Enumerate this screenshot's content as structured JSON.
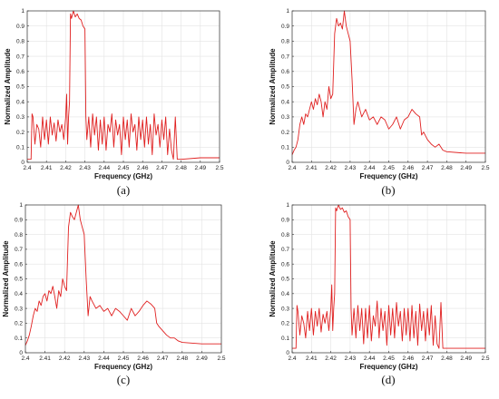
{
  "chart_data": [
    {
      "type": "line",
      "caption": "(a)",
      "xlabel": "Frequency (GHz)",
      "ylabel": "Normalized Amplitude",
      "xlim": [
        2.4,
        2.5
      ],
      "ylim": [
        0,
        1
      ],
      "xticks": [
        2.4,
        2.41,
        2.42,
        2.43,
        2.44,
        2.45,
        2.46,
        2.47,
        2.48,
        2.49,
        2.5
      ],
      "yticks": [
        0,
        0.1,
        0.2,
        0.3,
        0.4,
        0.5,
        0.6,
        0.7,
        0.8,
        0.9,
        1
      ],
      "grid": true,
      "color": "#e02020",
      "series": [
        {
          "x": [
            2.4,
            2.402,
            2.4025,
            2.403,
            2.404,
            2.405,
            2.406,
            2.407,
            2.408,
            2.409,
            2.41,
            2.411,
            2.412,
            2.413,
            2.414,
            2.415,
            2.416,
            2.417,
            2.418,
            2.419,
            2.42,
            2.4205,
            2.421,
            2.4215,
            2.422,
            2.4225,
            2.423,
            2.424,
            2.425,
            2.426,
            2.427,
            2.428,
            2.429,
            2.43,
            2.4305,
            2.431,
            2.432,
            2.433,
            2.434,
            2.435,
            2.436,
            2.437,
            2.438,
            2.439,
            2.44,
            2.441,
            2.442,
            2.443,
            2.444,
            2.445,
            2.446,
            2.447,
            2.448,
            2.449,
            2.45,
            2.451,
            2.452,
            2.453,
            2.454,
            2.455,
            2.456,
            2.457,
            2.458,
            2.459,
            2.46,
            2.461,
            2.462,
            2.463,
            2.464,
            2.465,
            2.466,
            2.467,
            2.468,
            2.469,
            2.47,
            2.471,
            2.472,
            2.473,
            2.474,
            2.475,
            2.476,
            2.477,
            2.478,
            2.479,
            2.48,
            2.49,
            2.5
          ],
          "y": [
            0.02,
            0.02,
            0.32,
            0.3,
            0.12,
            0.25,
            0.22,
            0.1,
            0.3,
            0.15,
            0.28,
            0.12,
            0.3,
            0.18,
            0.26,
            0.14,
            0.28,
            0.2,
            0.25,
            0.15,
            0.3,
            0.45,
            0.12,
            0.3,
            0.4,
            0.98,
            0.95,
            1.0,
            0.96,
            0.98,
            0.95,
            0.94,
            0.9,
            0.88,
            0.3,
            0.15,
            0.3,
            0.1,
            0.32,
            0.18,
            0.3,
            0.08,
            0.28,
            0.12,
            0.3,
            0.08,
            0.25,
            0.2,
            0.32,
            0.1,
            0.28,
            0.18,
            0.25,
            0.05,
            0.3,
            0.15,
            0.28,
            0.1,
            0.32,
            0.2,
            0.25,
            0.08,
            0.3,
            0.15,
            0.28,
            0.1,
            0.3,
            0.12,
            0.25,
            0.05,
            0.32,
            0.18,
            0.25,
            0.1,
            0.28,
            0.15,
            0.3,
            0.05,
            0.22,
            0.08,
            0.02,
            0.3,
            0.02,
            0.02,
            0.02,
            0.03,
            0.03
          ]
        }
      ]
    },
    {
      "type": "line",
      "caption": "(b)",
      "xlabel": "Frequency (GHz)",
      "ylabel": "Normalized Amplitude",
      "xlim": [
        2.4,
        2.5
      ],
      "ylim": [
        0,
        1
      ],
      "xticks": [
        2.4,
        2.41,
        2.42,
        2.43,
        2.44,
        2.45,
        2.46,
        2.47,
        2.48,
        2.49,
        2.5
      ],
      "yticks": [
        0,
        0.1,
        0.2,
        0.3,
        0.4,
        0.5,
        0.6,
        0.7,
        0.8,
        0.9,
        1
      ],
      "grid": true,
      "color": "#e02020",
      "series": [
        {
          "x": [
            2.4,
            2.401,
            2.402,
            2.403,
            2.404,
            2.405,
            2.406,
            2.407,
            2.408,
            2.409,
            2.41,
            2.411,
            2.412,
            2.413,
            2.414,
            2.415,
            2.416,
            2.417,
            2.418,
            2.419,
            2.42,
            2.421,
            2.422,
            2.423,
            2.424,
            2.425,
            2.426,
            2.427,
            2.428,
            2.429,
            2.43,
            2.431,
            2.432,
            2.433,
            2.434,
            2.436,
            2.438,
            2.44,
            2.442,
            2.444,
            2.446,
            2.448,
            2.45,
            2.452,
            2.454,
            2.456,
            2.458,
            2.46,
            2.462,
            2.464,
            2.466,
            2.467,
            2.468,
            2.47,
            2.472,
            2.474,
            2.476,
            2.478,
            2.48,
            2.49,
            2.5
          ],
          "y": [
            0.05,
            0.08,
            0.1,
            0.15,
            0.25,
            0.3,
            0.25,
            0.32,
            0.3,
            0.35,
            0.4,
            0.35,
            0.42,
            0.38,
            0.45,
            0.4,
            0.3,
            0.4,
            0.35,
            0.5,
            0.42,
            0.45,
            0.85,
            0.95,
            0.9,
            0.92,
            0.88,
            1.0,
            0.9,
            0.85,
            0.8,
            0.55,
            0.25,
            0.35,
            0.4,
            0.3,
            0.35,
            0.28,
            0.3,
            0.25,
            0.3,
            0.28,
            0.22,
            0.25,
            0.3,
            0.22,
            0.28,
            0.3,
            0.35,
            0.32,
            0.3,
            0.18,
            0.2,
            0.15,
            0.12,
            0.1,
            0.12,
            0.08,
            0.07,
            0.06,
            0.06
          ]
        }
      ]
    },
    {
      "type": "line",
      "caption": "(c)",
      "xlabel": "Frequency (GHz)",
      "ylabel": "Normalized Amplitude",
      "xlim": [
        2.4,
        2.5
      ],
      "ylim": [
        0,
        1
      ],
      "xticks": [
        2.4,
        2.41,
        2.42,
        2.43,
        2.44,
        2.45,
        2.46,
        2.47,
        2.48,
        2.49,
        2.5
      ],
      "yticks": [
        0,
        0.1,
        0.2,
        0.3,
        0.4,
        0.5,
        0.6,
        0.7,
        0.8,
        0.9,
        1
      ],
      "grid": true,
      "color": "#e02020",
      "series": [
        {
          "x": [
            2.4,
            2.401,
            2.402,
            2.403,
            2.404,
            2.405,
            2.406,
            2.407,
            2.408,
            2.409,
            2.41,
            2.411,
            2.412,
            2.413,
            2.414,
            2.415,
            2.416,
            2.417,
            2.418,
            2.419,
            2.42,
            2.421,
            2.422,
            2.423,
            2.424,
            2.425,
            2.426,
            2.427,
            2.428,
            2.429,
            2.43,
            2.431,
            2.432,
            2.433,
            2.434,
            2.436,
            2.438,
            2.44,
            2.442,
            2.444,
            2.446,
            2.448,
            2.45,
            2.452,
            2.454,
            2.456,
            2.458,
            2.46,
            2.462,
            2.464,
            2.466,
            2.467,
            2.468,
            2.47,
            2.472,
            2.474,
            2.476,
            2.478,
            2.48,
            2.49,
            2.5
          ],
          "y": [
            0.05,
            0.08,
            0.12,
            0.18,
            0.25,
            0.3,
            0.28,
            0.35,
            0.32,
            0.38,
            0.4,
            0.35,
            0.42,
            0.4,
            0.45,
            0.38,
            0.3,
            0.42,
            0.38,
            0.5,
            0.45,
            0.42,
            0.85,
            0.95,
            0.92,
            0.9,
            0.95,
            1.0,
            0.9,
            0.85,
            0.8,
            0.5,
            0.25,
            0.38,
            0.35,
            0.3,
            0.32,
            0.28,
            0.3,
            0.25,
            0.3,
            0.28,
            0.25,
            0.22,
            0.3,
            0.25,
            0.28,
            0.32,
            0.35,
            0.33,
            0.3,
            0.2,
            0.18,
            0.15,
            0.12,
            0.1,
            0.1,
            0.08,
            0.07,
            0.06,
            0.06
          ]
        }
      ]
    },
    {
      "type": "line",
      "caption": "(d)",
      "xlabel": "Frequency (GHz)",
      "ylabel": "Normalized Amplitude",
      "xlim": [
        2.4,
        2.5
      ],
      "ylim": [
        0,
        1
      ],
      "xticks": [
        2.4,
        2.41,
        2.42,
        2.43,
        2.44,
        2.45,
        2.46,
        2.47,
        2.48,
        2.49,
        2.5
      ],
      "yticks": [
        0,
        0.1,
        0.2,
        0.3,
        0.4,
        0.5,
        0.6,
        0.7,
        0.8,
        0.9,
        1
      ],
      "grid": true,
      "color": "#e02020",
      "series": [
        {
          "x": [
            2.4,
            2.402,
            2.4025,
            2.403,
            2.404,
            2.405,
            2.406,
            2.407,
            2.408,
            2.409,
            2.41,
            2.411,
            2.412,
            2.413,
            2.414,
            2.415,
            2.416,
            2.417,
            2.418,
            2.419,
            2.42,
            2.4205,
            2.421,
            2.4215,
            2.422,
            2.4225,
            2.423,
            2.424,
            2.425,
            2.426,
            2.427,
            2.428,
            2.429,
            2.43,
            2.4305,
            2.431,
            2.432,
            2.433,
            2.434,
            2.435,
            2.436,
            2.437,
            2.438,
            2.439,
            2.44,
            2.441,
            2.442,
            2.443,
            2.444,
            2.445,
            2.446,
            2.447,
            2.448,
            2.449,
            2.45,
            2.451,
            2.452,
            2.453,
            2.454,
            2.455,
            2.456,
            2.457,
            2.458,
            2.459,
            2.46,
            2.461,
            2.462,
            2.463,
            2.464,
            2.465,
            2.466,
            2.467,
            2.468,
            2.469,
            2.47,
            2.471,
            2.472,
            2.473,
            2.474,
            2.475,
            2.476,
            2.477,
            2.478,
            2.479,
            2.48,
            2.49,
            2.5
          ],
          "y": [
            0.03,
            0.03,
            0.32,
            0.28,
            0.12,
            0.25,
            0.2,
            0.1,
            0.28,
            0.15,
            0.3,
            0.12,
            0.28,
            0.18,
            0.3,
            0.14,
            0.26,
            0.2,
            0.28,
            0.15,
            0.3,
            0.46,
            0.15,
            0.3,
            0.4,
            0.98,
            0.96,
            1.0,
            0.97,
            0.98,
            0.95,
            0.96,
            0.92,
            0.9,
            0.3,
            0.12,
            0.3,
            0.1,
            0.32,
            0.15,
            0.3,
            0.06,
            0.3,
            0.1,
            0.32,
            0.08,
            0.25,
            0.18,
            0.35,
            0.1,
            0.3,
            0.15,
            0.28,
            0.05,
            0.32,
            0.12,
            0.3,
            0.1,
            0.34,
            0.18,
            0.28,
            0.08,
            0.3,
            0.12,
            0.3,
            0.08,
            0.32,
            0.1,
            0.28,
            0.05,
            0.33,
            0.15,
            0.28,
            0.08,
            0.3,
            0.12,
            0.32,
            0.05,
            0.25,
            0.06,
            0.03,
            0.34,
            0.03,
            0.03,
            0.03,
            0.03,
            0.03
          ]
        }
      ]
    }
  ]
}
